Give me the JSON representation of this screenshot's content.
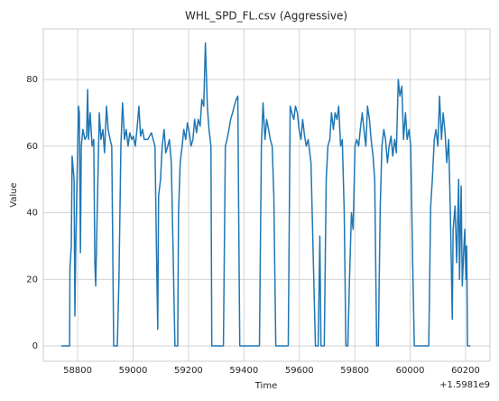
{
  "chart_data": {
    "type": "line",
    "title": "WHL_SPD_FL.csv (Aggressive)",
    "x_label": "Time",
    "y_label": "Value",
    "x_offset_label": "+1.5981e9",
    "color": "#1f77b4",
    "grid": true,
    "x": [
      1598158741,
      1598158771,
      1598158772,
      1598158777,
      1598158780,
      1598158787,
      1598158790,
      1598158793,
      1598158800,
      1598158803,
      1598158806,
      1598158810,
      1598158813,
      1598158819,
      1598158826,
      1598158832,
      1598158836,
      1598158839,
      1598158845,
      1598158852,
      1598158858,
      1598158862,
      1598158865,
      1598158878,
      1598158884,
      1598158891,
      1598158897,
      1598158904,
      1598158910,
      1598158917,
      1598158923,
      1598158930,
      1598158943,
      1598158949,
      1598158956,
      1598158962,
      1598158969,
      1598158975,
      1598158982,
      1598158988,
      1598158995,
      1598159001,
      1598159008,
      1598159014,
      1598159021,
      1598159027,
      1598159034,
      1598159040,
      1598159053,
      1598159066,
      1598159079,
      1598159086,
      1598159089,
      1598159092,
      1598159099,
      1598159105,
      1598159112,
      1598159118,
      1598159125,
      1598159131,
      1598159138,
      1598159144,
      1598159151,
      1598159161,
      1598159164,
      1598159170,
      1598159177,
      1598159183,
      1598159190,
      1598159196,
      1598159203,
      1598159209,
      1598159216,
      1598159222,
      1598159229,
      1598159235,
      1598159242,
      1598159248,
      1598159255,
      1598159261,
      1598159268,
      1598159274,
      1598159281,
      1598159284,
      1598159326,
      1598159333,
      1598159339,
      1598159346,
      1598159352,
      1598159359,
      1598159365,
      1598159372,
      1598159378,
      1598159382,
      1598159385,
      1598159456,
      1598159463,
      1598159469,
      1598159476,
      1598159482,
      1598159489,
      1598159495,
      1598159502,
      1598159508,
      1598159515,
      1598159560,
      1598159567,
      1598159573,
      1598159580,
      1598159586,
      1598159593,
      1598159599,
      1598159606,
      1598159612,
      1598159619,
      1598159625,
      1598159632,
      1598159642,
      1598159658,
      1598159668,
      1598159674,
      1598159678,
      1598159690,
      1598159697,
      1598159703,
      1598159710,
      1598159716,
      1598159723,
      1598159729,
      1598159736,
      1598159742,
      1598159749,
      1598159755,
      1598159762,
      1598159768,
      1598159775,
      1598159781,
      1598159788,
      1598159794,
      1598159801,
      1598159807,
      1598159814,
      1598159820,
      1598159827,
      1598159833,
      1598159840,
      1598159846,
      1598159853,
      1598159859,
      1598159866,
      1598159872,
      1598159879,
      1598159885,
      1598159892,
      1598159898,
      1598159905,
      1598159911,
      1598159918,
      1598159924,
      1598159931,
      1598159937,
      1598159944,
      1598159950,
      1598159957,
      1598159963,
      1598159970,
      1598159976,
      1598159983,
      1598159989,
      1598159996,
      1598160002,
      1598160009,
      1598160015,
      1598160067,
      1598160074,
      1598160080,
      1598160087,
      1598160093,
      1598160100,
      1598160106,
      1598160113,
      1598160119,
      1598160126,
      1598160132,
      1598160139,
      1598160145,
      1598160152,
      1598160155,
      1598160162,
      1598160168,
      1598160175,
      1598160178,
      1598160184,
      1598160188,
      1598160194,
      1598160197,
      1598160201,
      1598160204,
      1598160207,
      1598160217
    ],
    "values": [
      0,
      0,
      23,
      30,
      57,
      50,
      9,
      30,
      60,
      72,
      70,
      28,
      60,
      65,
      62,
      63,
      77,
      62,
      70,
      60,
      62,
      25,
      18,
      70,
      62,
      65,
      58,
      72,
      65,
      62,
      60,
      0,
      0,
      20,
      60,
      73,
      62,
      65,
      60,
      64,
      62,
      63,
      60,
      65,
      72,
      63,
      65,
      62,
      62,
      64,
      60,
      20,
      5,
      45,
      50,
      60,
      65,
      58,
      60,
      62,
      55,
      30,
      0,
      0,
      40,
      55,
      60,
      65,
      62,
      67,
      64,
      60,
      62,
      68,
      64,
      68,
      66,
      74,
      72,
      91,
      72,
      65,
      60,
      0,
      0,
      60,
      62,
      65,
      68,
      70,
      72,
      74,
      75,
      30,
      0,
      0,
      60,
      73,
      62,
      68,
      65,
      62,
      60,
      45,
      0,
      0,
      72,
      70,
      68,
      72,
      70,
      65,
      62,
      68,
      63,
      60,
      62,
      55,
      0,
      0,
      33,
      0,
      0,
      50,
      60,
      62,
      70,
      65,
      70,
      68,
      72,
      60,
      62,
      40,
      0,
      0,
      20,
      40,
      35,
      60,
      62,
      60,
      65,
      70,
      65,
      60,
      72,
      68,
      62,
      57,
      50,
      0,
      0,
      42,
      60,
      65,
      62,
      55,
      60,
      63,
      57,
      62,
      58,
      80,
      75,
      78,
      62,
      70,
      62,
      65,
      60,
      25,
      0,
      0,
      42,
      50,
      62,
      65,
      60,
      75,
      62,
      70,
      64,
      55,
      62,
      40,
      8,
      35,
      42,
      25,
      50,
      20,
      48,
      18,
      30,
      35,
      20,
      30,
      0,
      0
    ],
    "xlim": [
      1598158676,
      1598160288
    ],
    "xticks": [
      {
        "value": 1598158800,
        "label": "58800"
      },
      {
        "value": 1598159000,
        "label": "59000"
      },
      {
        "value": 1598159200,
        "label": "59200"
      },
      {
        "value": 1598159400,
        "label": "59400"
      },
      {
        "value": 1598159600,
        "label": "59600"
      },
      {
        "value": 1598159800,
        "label": "59800"
      },
      {
        "value": 1598160000,
        "label": "60000"
      },
      {
        "value": 1598160200,
        "label": "60200"
      }
    ],
    "ylim": [
      -4.6,
      95.2
    ],
    "yticks": [
      0,
      20,
      40,
      60,
      80
    ]
  }
}
